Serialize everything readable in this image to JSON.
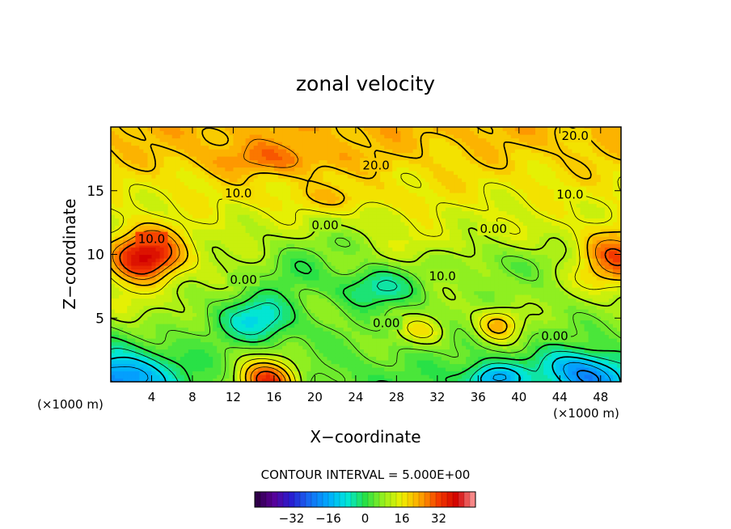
{
  "chart_data": {
    "type": "heatmap",
    "title": "zonal velocity",
    "xlabel": "X−coordinate",
    "ylabel": "Z−coordinate",
    "x_unit_left": "(×1000 m)",
    "x_unit_right": "(×1000 m)",
    "xlim": [
      0,
      50
    ],
    "ylim": [
      0,
      20
    ],
    "x_ticks": [
      {
        "value": 4,
        "label": "4"
      },
      {
        "value": 8,
        "label": "8"
      },
      {
        "value": 12,
        "label": "12"
      },
      {
        "value": 16,
        "label": "16"
      },
      {
        "value": 20,
        "label": "20"
      },
      {
        "value": 24,
        "label": "24"
      },
      {
        "value": 28,
        "label": "28"
      },
      {
        "value": 32,
        "label": "32"
      },
      {
        "value": 36,
        "label": "36"
      },
      {
        "value": 40,
        "label": "40"
      },
      {
        "value": 44,
        "label": "44"
      },
      {
        "value": 48,
        "label": "48"
      }
    ],
    "y_ticks": [
      {
        "value": 5,
        "label": "5"
      },
      {
        "value": 10,
        "label": "10"
      },
      {
        "value": 15,
        "label": "15"
      }
    ],
    "contour_interval_text": "CONTOUR INTERVAL = 5.000E+00",
    "contour_labels": [
      {
        "x": 45.5,
        "y": 19.3,
        "text": "20.0"
      },
      {
        "x": 26.0,
        "y": 17.0,
        "text": "20.0"
      },
      {
        "x": 12.5,
        "y": 14.8,
        "text": "10.0"
      },
      {
        "x": 45.0,
        "y": 14.7,
        "text": "10.0"
      },
      {
        "x": 4.0,
        "y": 11.2,
        "text": "10.0"
      },
      {
        "x": 21.0,
        "y": 12.3,
        "text": "0.00"
      },
      {
        "x": 37.5,
        "y": 12.0,
        "text": "0.00"
      },
      {
        "x": 32.5,
        "y": 8.3,
        "text": "10.0"
      },
      {
        "x": 13.0,
        "y": 8.0,
        "text": "0.00"
      },
      {
        "x": 27.0,
        "y": 4.6,
        "text": "0.00"
      },
      {
        "x": 43.5,
        "y": 3.6,
        "text": "0.00"
      }
    ],
    "colorbar": {
      "range": [
        -48,
        48
      ],
      "ticks": [
        {
          "value": -32,
          "label": "−32"
        },
        {
          "value": -16,
          "label": "−16"
        },
        {
          "value": 0,
          "label": "0"
        },
        {
          "value": 16,
          "label": "16"
        },
        {
          "value": 32,
          "label": "32"
        }
      ]
    }
  }
}
